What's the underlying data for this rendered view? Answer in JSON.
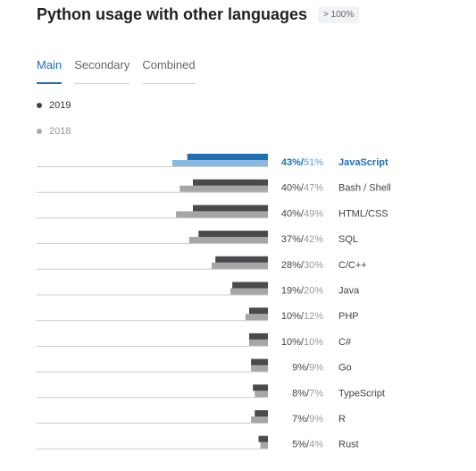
{
  "header": {
    "title": "Python usage with other languages",
    "badge": "> 100%"
  },
  "tabs": [
    {
      "label": "Main",
      "active": true
    },
    {
      "label": "Secondary",
      "active": false
    },
    {
      "label": "Combined",
      "active": false
    }
  ],
  "legend": [
    {
      "label": "2019",
      "color": "#444444",
      "text_color": "#333333"
    },
    {
      "label": "2018",
      "color": "#aaaaaa",
      "text_color": "#999999"
    }
  ],
  "colors": {
    "bar_2019": "#4a4a4c",
    "bar_2018": "#a6a6a6",
    "highlight_2019": "#1f6fb5",
    "highlight_2018": "#8ab8e0",
    "baseline": "#cccccc"
  },
  "chart_data": {
    "type": "bar",
    "orientation": "horizontal",
    "categories": [
      "JavaScript",
      "Bash / Shell",
      "HTML/CSS",
      "SQL",
      "C/C++",
      "Java",
      "PHP",
      "C#",
      "Go",
      "TypeScript",
      "R",
      "Rust"
    ],
    "value_labels": [
      "43%",
      "40%",
      "40%",
      "37%",
      "28%",
      "19%",
      "10%",
      "10%",
      "9%",
      "8%",
      "7%",
      "5%"
    ],
    "value_labels_2018": [
      "51%",
      "47%",
      "49%",
      "42%",
      "30%",
      "20%",
      "12%",
      "10%",
      "9%",
      "7%",
      "9%",
      "4%"
    ],
    "series": [
      {
        "name": "2019",
        "values": [
          43,
          40,
          40,
          37,
          28,
          19,
          10,
          10,
          9,
          8,
          7,
          5
        ]
      },
      {
        "name": "2018",
        "values": [
          51,
          47,
          49,
          42,
          30,
          20,
          12,
          10,
          9,
          7,
          9,
          4
        ]
      }
    ],
    "highlight_index": 0,
    "xlim": [
      0,
      100
    ]
  }
}
